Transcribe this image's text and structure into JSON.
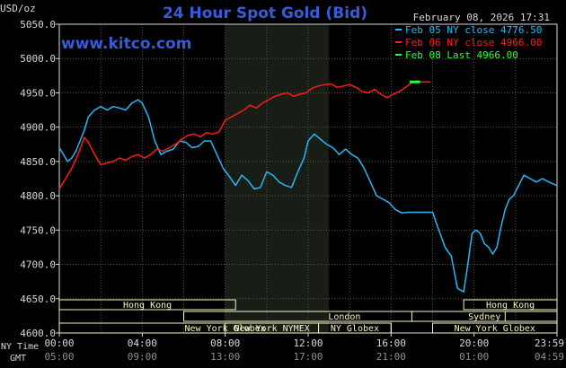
{
  "chart_data": {
    "type": "line",
    "title": "24 Hour Spot Gold (Bid)",
    "watermark": "www.kitco.com",
    "timestamp": "February 08, 2026 17:31",
    "ylabel": "USD/oz",
    "ylim": [
      4600,
      5050
    ],
    "yticks": [
      "5050.0",
      "5000.0",
      "4950.0",
      "4900.0",
      "4850.0",
      "4800.0",
      "4750.0",
      "4700.0",
      "4650.0",
      "4600.0"
    ],
    "ytick_values": [
      5050,
      5000,
      4950,
      4900,
      4850,
      4800,
      4750,
      4700,
      4650,
      4600
    ],
    "xlim": [
      0,
      24
    ],
    "x_axis_labels": {
      "ny_time_label": "NY Time",
      "gmt_label": "GMT",
      "ny": [
        "00:00",
        "04:00",
        "08:00",
        "12:00",
        "16:00",
        "20:00",
        "23:59"
      ],
      "gmt": [
        "05:00",
        "09:00",
        "13:00",
        "17:00",
        "21:00",
        "01:00",
        "04:59"
      ]
    },
    "x_tick_hours": [
      0,
      4,
      8,
      12,
      16,
      20,
      24
    ],
    "shaded_period": [
      8,
      13
    ],
    "grid": true,
    "legend_placement": "top-right",
    "series": [
      {
        "name": "Feb 05 NY close 4776.50",
        "color": "#29b6f6",
        "x": [
          0,
          0.2,
          0.4,
          0.6,
          0.8,
          1.0,
          1.2,
          1.4,
          1.7,
          2.0,
          2.3,
          2.6,
          2.9,
          3.2,
          3.5,
          3.8,
          4.0,
          4.3,
          4.6,
          4.9,
          5.2,
          5.5,
          5.8,
          6.1,
          6.4,
          6.7,
          7.0,
          7.3,
          7.6,
          7.9,
          8.2,
          8.5,
          8.8,
          9.1,
          9.4,
          9.7,
          10.0,
          10.3,
          10.6,
          10.9,
          11.2,
          11.5,
          11.8,
          12.0,
          12.3,
          12.6,
          12.9,
          13.2,
          13.5,
          13.8,
          14.1,
          14.4,
          14.7,
          15.0,
          15.3,
          15.6,
          15.9,
          16.2,
          16.5,
          16.8,
          17.1,
          17.4,
          17.7,
          18.0,
          18.3,
          18.6,
          18.9,
          19.2,
          19.5,
          19.7,
          19.9,
          20.1,
          20.3,
          20.5,
          20.7,
          20.9,
          21.1,
          21.3,
          21.5,
          21.7,
          21.9,
          22.1,
          22.4,
          22.7,
          23.0,
          23.3,
          23.6,
          23.99
        ],
        "values": [
          4870,
          4860,
          4850,
          4855,
          4865,
          4880,
          4895,
          4915,
          4925,
          4930,
          4925,
          4930,
          4928,
          4925,
          4935,
          4940,
          4935,
          4915,
          4880,
          4860,
          4865,
          4868,
          4880,
          4878,
          4870,
          4872,
          4880,
          4880,
          4860,
          4840,
          4828,
          4815,
          4830,
          4822,
          4810,
          4812,
          4835,
          4830,
          4820,
          4815,
          4812,
          4835,
          4855,
          4880,
          4890,
          4882,
          4875,
          4870,
          4860,
          4868,
          4860,
          4855,
          4840,
          4820,
          4800,
          4795,
          4790,
          4780,
          4775,
          4776,
          4776,
          4776,
          4776,
          4776,
          4750,
          4725,
          4712,
          4665,
          4660,
          4700,
          4745,
          4750,
          4745,
          4730,
          4725,
          4715,
          4725,
          4755,
          4780,
          4795,
          4800,
          4812,
          4830,
          4825,
          4820,
          4825,
          4820,
          4815
        ]
      },
      {
        "name": "Feb 06 NY close 4966.00",
        "color": "#ff1a1a",
        "x": [
          0,
          0.3,
          0.6,
          0.9,
          1.2,
          1.4,
          1.7,
          2.0,
          2.3,
          2.6,
          2.9,
          3.2,
          3.5,
          3.8,
          4.1,
          4.4,
          4.7,
          5.0,
          5.3,
          5.6,
          5.9,
          6.2,
          6.5,
          6.8,
          7.1,
          7.4,
          7.7,
          8.0,
          8.3,
          8.6,
          8.9,
          9.2,
          9.5,
          9.8,
          10.1,
          10.4,
          10.7,
          11.0,
          11.3,
          11.6,
          11.9,
          12.2,
          12.5,
          12.8,
          13.1,
          13.4,
          13.7,
          14.0,
          14.3,
          14.6,
          14.9,
          15.2,
          15.5,
          15.8,
          16.1,
          16.4,
          16.7,
          17.0,
          17.3,
          17.6,
          17.9
        ],
        "values": [
          4810,
          4825,
          4840,
          4860,
          4885,
          4878,
          4860,
          4845,
          4848,
          4850,
          4855,
          4852,
          4857,
          4860,
          4855,
          4860,
          4868,
          4865,
          4870,
          4875,
          4882,
          4888,
          4890,
          4886,
          4892,
          4890,
          4893,
          4910,
          4915,
          4920,
          4925,
          4932,
          4928,
          4935,
          4940,
          4945,
          4948,
          4950,
          4945,
          4948,
          4950,
          4957,
          4960,
          4962,
          4963,
          4958,
          4960,
          4962,
          4958,
          4952,
          4950,
          4955,
          4948,
          4943,
          4948,
          4952,
          4958,
          4965,
          4966,
          4966,
          4966
        ]
      },
      {
        "name": "Feb 08 Last 4966.00",
        "color": "#33ff33",
        "x": [
          16.9,
          17.4
        ],
        "values": [
          4966,
          4966
        ]
      }
    ],
    "sessions": [
      {
        "name": "Hong Kong",
        "start": 0,
        "end": 8.5,
        "row": 0
      },
      {
        "name": "Hong Kong",
        "start": 19.5,
        "end": 24,
        "row": 0
      },
      {
        "name": "London",
        "start": 6,
        "end": 21.5,
        "row": 1
      },
      {
        "name": "Sydney",
        "start": 17,
        "end": 24,
        "row": 1
      },
      {
        "name": "New York Globex",
        "start": 0,
        "end": 16,
        "row": 2
      },
      {
        "name": "New York NYMEX",
        "start": 8,
        "end": 12.5,
        "row": 2
      },
      {
        "name": "NY Globex",
        "start": 12.5,
        "end": 16,
        "row": 2
      },
      {
        "name": "New York Globex",
        "start": 18,
        "end": 24,
        "row": 2
      }
    ]
  },
  "colors": {
    "background": "#000000",
    "plot_background": "#000000",
    "shaded_period": "#181d16",
    "grid": "#555555",
    "title": "#3a5bd9",
    "watermark": "#3a5bd9",
    "text": "#d8d8d8",
    "session_fill": "#f6f6c8",
    "session_text": "#000000"
  }
}
